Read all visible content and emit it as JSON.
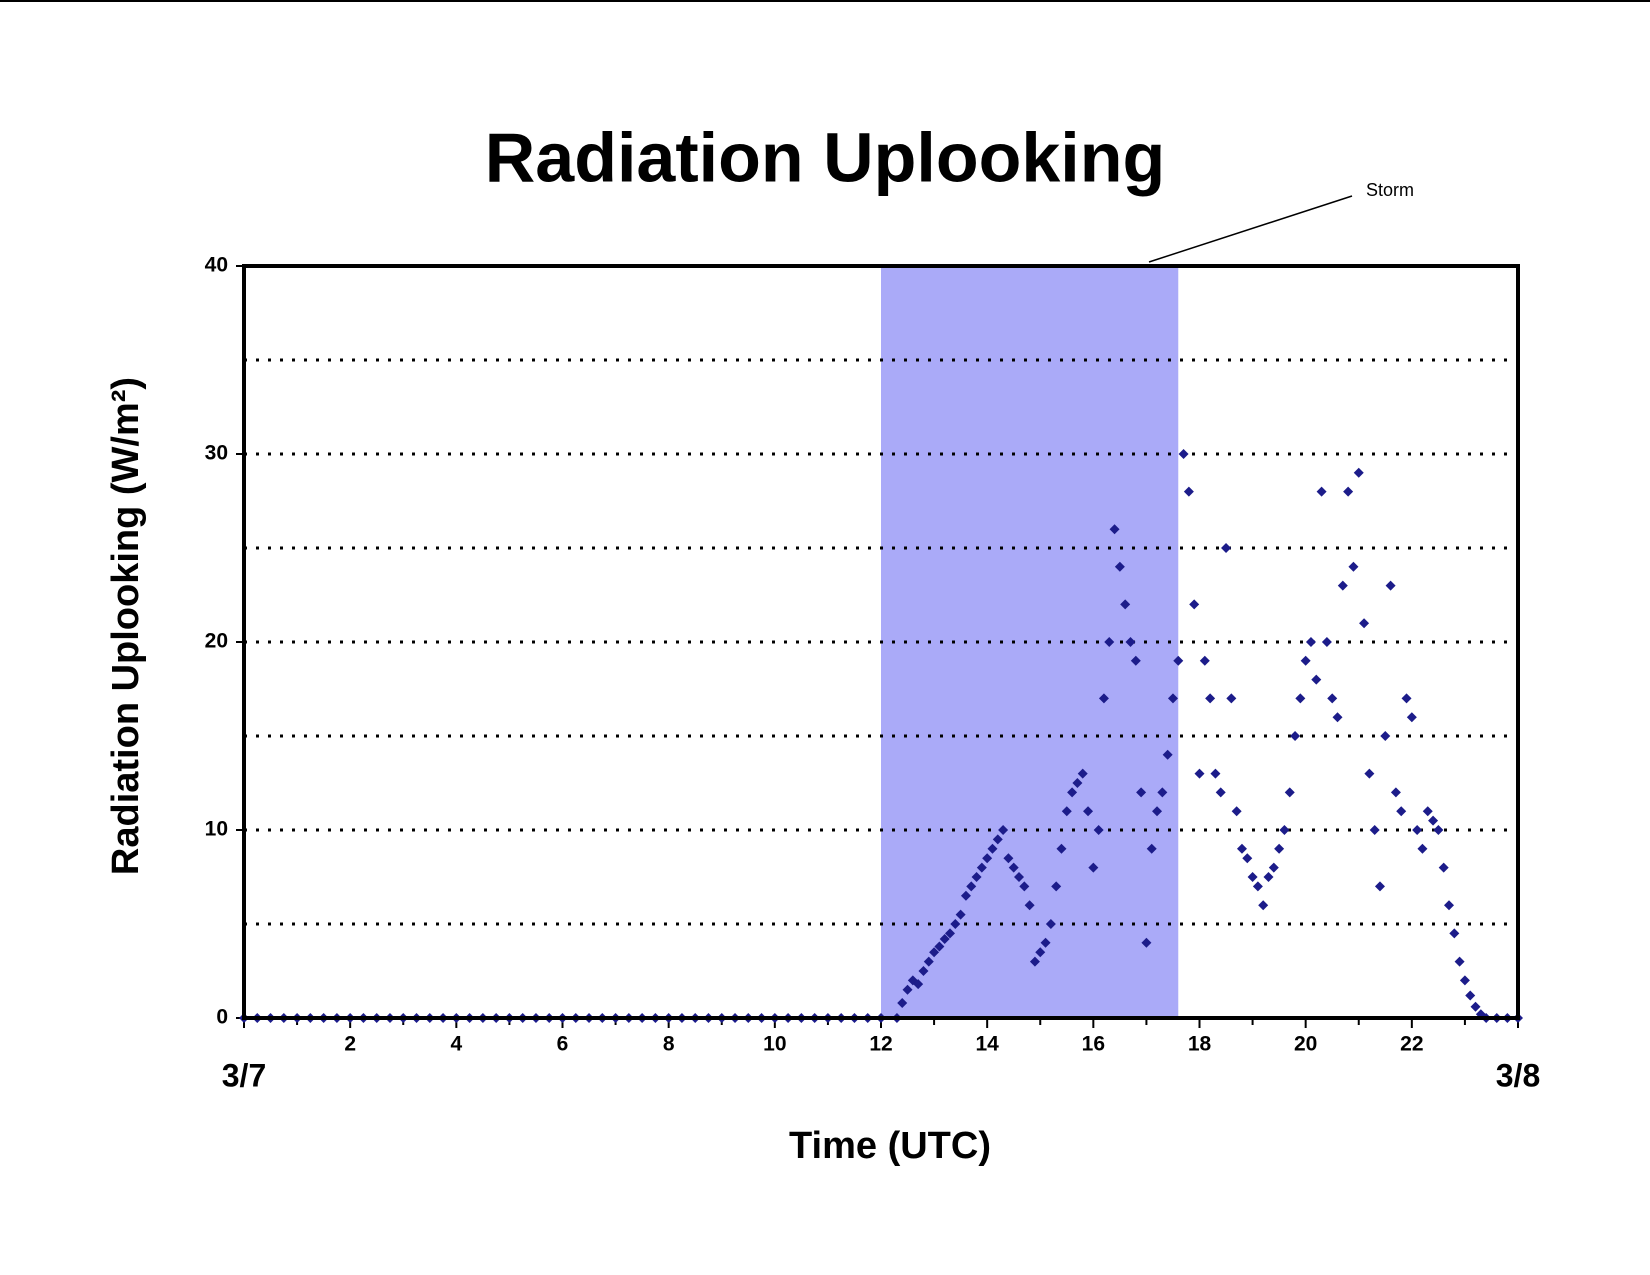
{
  "chart_data": {
    "type": "scatter",
    "title": "Radiation Uplooking",
    "x_label": "Time (UTC)",
    "y_label": "Radiation Uplooking (W/m²)",
    "color": "#1c1c8a",
    "span": {
      "label": "Storm",
      "x": [
        12,
        17.6
      ],
      "color": "#aaaaf8"
    },
    "xlim": [
      0,
      24
    ],
    "xticks": [
      {
        "value": 0,
        "label": "3/7"
      },
      2,
      4,
      6,
      8,
      10,
      12,
      14,
      16,
      18,
      20,
      22,
      {
        "value": 24,
        "label": "3/8"
      }
    ],
    "xminorticks": [
      1,
      3,
      5,
      7,
      9,
      11,
      13,
      15,
      17,
      19,
      21,
      23
    ],
    "ylim": [
      0,
      40
    ],
    "yticks": [
      0,
      10,
      20,
      30,
      40
    ],
    "grid_lines": [
      5,
      10,
      15,
      20,
      25,
      30,
      35
    ],
    "grid": true,
    "x": [
      0,
      0.25,
      0.5,
      0.75,
      1,
      1.25,
      1.5,
      1.75,
      2,
      2.25,
      2.5,
      2.75,
      3,
      3.25,
      3.5,
      3.75,
      4,
      4.25,
      4.5,
      4.75,
      5,
      5.25,
      5.5,
      5.75,
      6,
      6.25,
      6.5,
      6.75,
      7,
      7.25,
      7.5,
      7.75,
      8,
      8.25,
      8.5,
      8.75,
      9,
      9.25,
      9.5,
      9.75,
      10,
      10.25,
      10.5,
      10.75,
      11,
      11.25,
      11.5,
      11.75,
      12,
      12.3,
      12.4,
      12.5,
      12.6,
      12.7,
      12.8,
      12.9,
      13.0,
      13.1,
      13.2,
      13.3,
      13.4,
      13.5,
      13.6,
      13.7,
      13.8,
      13.9,
      14.0,
      14.1,
      14.2,
      14.3,
      14.4,
      14.5,
      14.6,
      14.7,
      14.8,
      14.9,
      15.0,
      15.1,
      15.2,
      15.3,
      15.4,
      15.5,
      15.6,
      15.7,
      15.8,
      15.9,
      16.0,
      16.1,
      16.2,
      16.3,
      16.4,
      16.5,
      16.6,
      16.7,
      16.8,
      16.9,
      17.0,
      17.1,
      17.2,
      17.3,
      17.4,
      17.5,
      17.6,
      17.7,
      17.8,
      17.9,
      18.0,
      18.1,
      18.2,
      18.3,
      18.4,
      18.5,
      18.6,
      18.7,
      18.8,
      18.9,
      19.0,
      19.1,
      19.2,
      19.3,
      19.4,
      19.5,
      19.6,
      19.7,
      19.8,
      19.9,
      20.0,
      20.1,
      20.2,
      20.3,
      20.4,
      20.5,
      20.6,
      20.7,
      20.8,
      20.9,
      21.0,
      21.1,
      21.2,
      21.3,
      21.4,
      21.5,
      21.6,
      21.7,
      21.8,
      21.9,
      22.0,
      22.1,
      22.2,
      22.3,
      22.4,
      22.5,
      22.6,
      22.7,
      22.8,
      22.9,
      23.0,
      23.1,
      23.2,
      23.3,
      23.4,
      23.6,
      23.8,
      24
    ],
    "values": [
      0,
      0,
      0,
      0,
      0,
      0,
      0,
      0,
      0,
      0,
      0,
      0,
      0,
      0,
      0,
      0,
      0,
      0,
      0,
      0,
      0,
      0,
      0,
      0,
      0,
      0,
      0,
      0,
      0,
      0,
      0,
      0,
      0,
      0,
      0,
      0,
      0,
      0,
      0,
      0,
      0,
      0,
      0,
      0,
      0,
      0,
      0,
      0,
      0,
      0,
      0.8,
      1.5,
      2,
      1.8,
      2.5,
      3,
      3.5,
      3.8,
      4.2,
      4.5,
      5,
      5.5,
      6.5,
      7,
      7.5,
      8,
      8.5,
      9,
      9.5,
      10,
      8.5,
      8,
      7.5,
      7,
      6,
      3,
      3.5,
      4,
      5,
      7,
      9,
      11,
      12,
      12.5,
      13,
      11,
      8,
      10,
      17,
      20,
      26,
      24,
      22,
      20,
      19,
      12,
      4,
      9,
      11,
      12,
      14,
      17,
      19,
      30,
      28,
      22,
      13,
      19,
      17,
      13,
      12,
      25,
      17,
      11,
      9,
      8.5,
      7.5,
      7,
      6,
      7.5,
      8,
      9,
      10,
      12,
      15,
      17,
      19,
      20,
      18,
      28,
      20,
      17,
      16,
      23,
      28,
      24,
      29,
      21,
      13,
      10,
      7,
      15,
      23,
      12,
      11,
      17,
      16,
      10,
      9,
      11,
      10.5,
      10,
      8,
      6,
      4.5,
      3,
      2,
      1.2,
      0.6,
      0.2,
      0,
      0,
      0,
      0
    ]
  }
}
